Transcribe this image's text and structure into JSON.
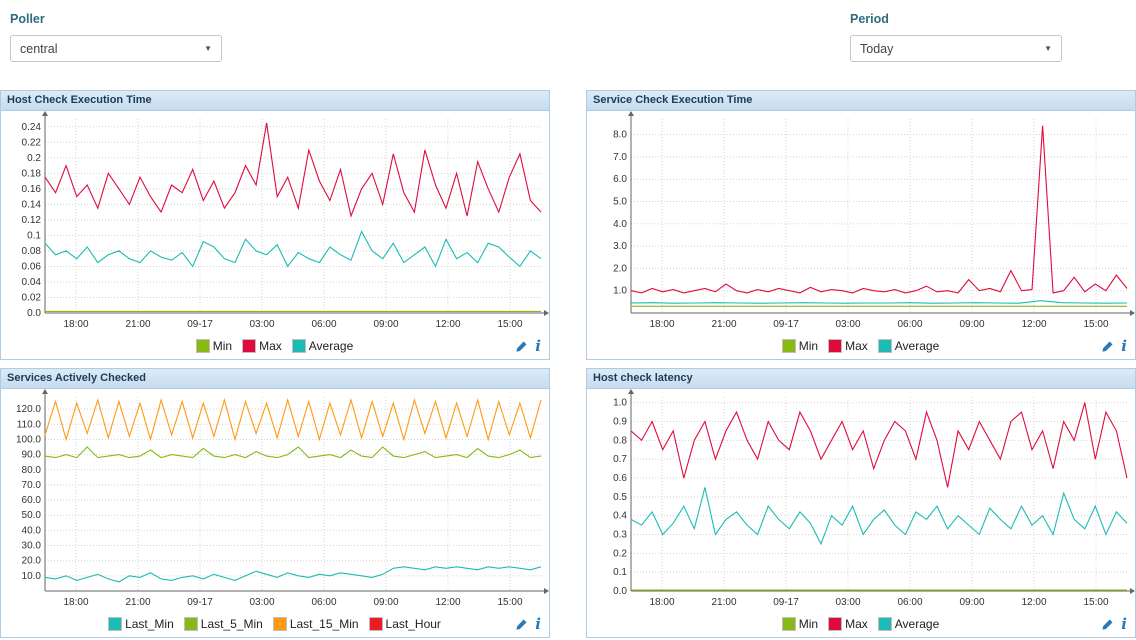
{
  "filters": {
    "poller": {
      "label": "Poller",
      "value": "central"
    },
    "period": {
      "label": "Period",
      "value": "Today"
    }
  },
  "icons": {
    "dropdown_caret": "▼",
    "info": "i"
  },
  "colors": {
    "min": "#88b917",
    "max": "#e00b3d",
    "average": "#1cbcb4",
    "orange": "#ff9913",
    "red": "#ed1b23",
    "accent_blue": "#2a7ab9"
  },
  "chart_data": [
    {
      "type": "line",
      "title": "Host Check Execution Time",
      "x_domain": [
        0,
        24
      ],
      "x_tick_values": [
        1.5,
        4.5,
        7.5,
        10.5,
        13.5,
        16.5,
        19.5,
        22.5
      ],
      "x_tick_labels": [
        "18:00",
        "21:00",
        "09-17",
        "03:00",
        "06:00",
        "09:00",
        "12:00",
        "15:00"
      ],
      "ylim": [
        0,
        0.25
      ],
      "y_tick_values": [
        0,
        0.02,
        0.04,
        0.06,
        0.08,
        0.1,
        0.12,
        0.14,
        0.16,
        0.18,
        0.2,
        0.22,
        0.24
      ],
      "y_tick_labels": [
        "0.0",
        "0.02",
        "0.04",
        "0.06",
        "0.08",
        "0.1",
        "0.12",
        "0.14",
        "0.16",
        "0.18",
        "0.2",
        "0.22",
        "0.24"
      ],
      "grid": true,
      "legend_position": "bottom",
      "series": [
        {
          "name": "Min",
          "color": "#88b917",
          "values": [
            0.002,
            0.002
          ]
        },
        {
          "name": "Max",
          "color": "#e00b3d",
          "values": [
            0.175,
            0.155,
            0.19,
            0.15,
            0.165,
            0.135,
            0.18,
            0.16,
            0.14,
            0.175,
            0.15,
            0.13,
            0.165,
            0.155,
            0.185,
            0.145,
            0.17,
            0.135,
            0.155,
            0.19,
            0.165,
            0.245,
            0.15,
            0.175,
            0.135,
            0.21,
            0.17,
            0.145,
            0.185,
            0.125,
            0.16,
            0.18,
            0.14,
            0.205,
            0.155,
            0.13,
            0.21,
            0.165,
            0.135,
            0.18,
            0.125,
            0.195,
            0.16,
            0.13,
            0.175,
            0.205,
            0.145,
            0.13
          ]
        },
        {
          "name": "Average",
          "color": "#1cbcb4",
          "values": [
            0.09,
            0.075,
            0.08,
            0.07,
            0.085,
            0.065,
            0.075,
            0.08,
            0.07,
            0.065,
            0.08,
            0.072,
            0.068,
            0.078,
            0.06,
            0.092,
            0.085,
            0.07,
            0.065,
            0.095,
            0.08,
            0.075,
            0.088,
            0.06,
            0.078,
            0.07,
            0.065,
            0.085,
            0.075,
            0.068,
            0.105,
            0.08,
            0.07,
            0.09,
            0.065,
            0.075,
            0.085,
            0.06,
            0.095,
            0.07,
            0.078,
            0.065,
            0.09,
            0.085,
            0.072,
            0.06,
            0.08,
            0.07
          ]
        }
      ]
    },
    {
      "type": "line",
      "title": "Service Check Execution Time",
      "x_domain": [
        0,
        24
      ],
      "x_tick_values": [
        1.5,
        4.5,
        7.5,
        10.5,
        13.5,
        16.5,
        19.5,
        22.5
      ],
      "x_tick_labels": [
        "18:00",
        "21:00",
        "09-17",
        "03:00",
        "06:00",
        "09:00",
        "12:00",
        "15:00"
      ],
      "ylim": [
        0,
        8.7
      ],
      "y_tick_values": [
        1,
        2,
        3,
        4,
        5,
        6,
        7,
        8
      ],
      "y_tick_labels": [
        "1.0",
        "2.0",
        "3.0",
        "4.0",
        "5.0",
        "6.0",
        "7.0",
        "8.0"
      ],
      "grid": true,
      "legend_position": "bottom",
      "series": [
        {
          "name": "Min",
          "color": "#88b917",
          "values": [
            0.3,
            0.3
          ]
        },
        {
          "name": "Max",
          "color": "#e00b3d",
          "values": [
            1.0,
            0.9,
            1.1,
            0.95,
            1.05,
            0.9,
            1.0,
            1.1,
            0.95,
            1.3,
            1.0,
            0.9,
            1.05,
            0.95,
            1.1,
            1.0,
            0.9,
            1.15,
            0.95,
            1.05,
            1.0,
            0.9,
            1.1,
            1.0,
            0.95,
            1.05,
            0.9,
            1.0,
            1.2,
            0.95,
            1.0,
            0.9,
            1.5,
            1.0,
            1.1,
            0.95,
            1.9,
            1.0,
            1.05,
            8.4,
            0.9,
            1.0,
            1.6,
            0.95,
            1.3,
            1.0,
            1.7,
            1.1
          ]
        },
        {
          "name": "Average",
          "color": "#1cbcb4",
          "values": [
            0.45,
            0.46,
            0.44,
            0.45,
            0.46,
            0.45,
            0.44,
            0.45,
            0.46,
            0.45,
            0.44,
            0.45,
            0.45,
            0.46,
            0.44,
            0.45,
            0.46,
            0.45,
            0.44,
            0.55,
            0.46,
            0.45,
            0.44,
            0.45
          ]
        }
      ]
    },
    {
      "type": "line",
      "title": "Services Actively Checked",
      "x_domain": [
        0,
        24
      ],
      "x_tick_values": [
        1.5,
        4.5,
        7.5,
        10.5,
        13.5,
        16.5,
        19.5,
        22.5
      ],
      "x_tick_labels": [
        "18:00",
        "21:00",
        "09-17",
        "03:00",
        "06:00",
        "09:00",
        "12:00",
        "15:00"
      ],
      "ylim": [
        0,
        128
      ],
      "y_tick_values": [
        10,
        20,
        30,
        40,
        50,
        60,
        70,
        80,
        90,
        100,
        110,
        120
      ],
      "y_tick_labels": [
        "10.0",
        "20.0",
        "30.0",
        "40.0",
        "50.0",
        "60.0",
        "70.0",
        "80.0",
        "90.0",
        "100.0",
        "110.0",
        "120.0"
      ],
      "grid": true,
      "legend_position": "bottom",
      "series": [
        {
          "name": "Last_Min",
          "color": "#1cbcb4",
          "values": [
            9,
            8,
            10,
            7,
            9,
            11,
            8,
            6,
            10,
            9,
            12,
            8,
            7,
            9,
            10,
            8,
            11,
            9,
            7,
            10,
            13,
            11,
            9,
            12,
            10,
            9,
            11,
            10,
            12,
            11,
            10,
            9,
            11,
            15,
            16,
            15,
            14,
            16,
            15,
            16,
            15,
            14,
            16,
            15,
            16,
            15,
            14,
            16
          ]
        },
        {
          "name": "Last_5_Min",
          "color": "#88b917",
          "values": [
            89,
            88,
            90,
            88,
            95,
            88,
            89,
            90,
            88,
            89,
            93,
            88,
            90,
            89,
            88,
            94,
            89,
            88,
            90,
            88,
            92,
            89,
            88,
            90,
            95,
            88,
            89,
            90,
            88,
            93,
            89,
            88,
            95,
            89,
            88,
            90,
            92,
            88,
            89,
            90,
            88,
            94,
            89,
            88,
            90,
            93,
            88,
            89
          ]
        },
        {
          "name": "Last_15_Min",
          "color": "#ff9913",
          "values": [
            103,
            125,
            100,
            124,
            104,
            126,
            101,
            125,
            102,
            124,
            100,
            126,
            103,
            125,
            101,
            124,
            102,
            126,
            100,
            125,
            104,
            124,
            101,
            126,
            102,
            125,
            100,
            124,
            103,
            126,
            101,
            125,
            102,
            124,
            100,
            126,
            104,
            125,
            101,
            124,
            102,
            126,
            100,
            125,
            103,
            124,
            101,
            126
          ]
        },
        {
          "name": "Last_Hour",
          "color": "#ed1b23",
          "values": []
        }
      ]
    },
    {
      "type": "line",
      "title": "Host check latency",
      "x_domain": [
        0,
        24
      ],
      "x_tick_values": [
        1.5,
        4.5,
        7.5,
        10.5,
        13.5,
        16.5,
        19.5,
        22.5
      ],
      "x_tick_labels": [
        "18:00",
        "21:00",
        "09-17",
        "03:00",
        "06:00",
        "09:00",
        "12:00",
        "15:00"
      ],
      "ylim": [
        0,
        1.03
      ],
      "y_tick_values": [
        0,
        0.1,
        0.2,
        0.3,
        0.4,
        0.5,
        0.6,
        0.7,
        0.8,
        0.9,
        1.0
      ],
      "y_tick_labels": [
        "0.0",
        "0.1",
        "0.2",
        "0.3",
        "0.4",
        "0.5",
        "0.6",
        "0.7",
        "0.8",
        "0.9",
        "1.0"
      ],
      "grid": true,
      "legend_position": "bottom",
      "series": [
        {
          "name": "Min",
          "color": "#88b917",
          "values": [
            0.005,
            0.005
          ]
        },
        {
          "name": "Max",
          "color": "#e00b3d",
          "values": [
            0.85,
            0.8,
            0.9,
            0.75,
            0.85,
            0.6,
            0.8,
            0.9,
            0.7,
            0.85,
            0.95,
            0.8,
            0.7,
            0.9,
            0.8,
            0.75,
            0.95,
            0.85,
            0.7,
            0.8,
            0.9,
            0.75,
            0.85,
            0.65,
            0.8,
            0.9,
            0.85,
            0.7,
            0.95,
            0.8,
            0.55,
            0.85,
            0.75,
            0.9,
            0.8,
            0.7,
            0.9,
            0.95,
            0.75,
            0.85,
            0.65,
            0.9,
            0.8,
            1.0,
            0.7,
            0.95,
            0.85,
            0.6
          ]
        },
        {
          "name": "Average",
          "color": "#1cbcb4",
          "values": [
            0.38,
            0.35,
            0.42,
            0.3,
            0.36,
            0.45,
            0.33,
            0.55,
            0.3,
            0.38,
            0.42,
            0.35,
            0.3,
            0.45,
            0.38,
            0.33,
            0.42,
            0.36,
            0.25,
            0.4,
            0.35,
            0.45,
            0.3,
            0.38,
            0.43,
            0.35,
            0.3,
            0.42,
            0.38,
            0.45,
            0.33,
            0.4,
            0.35,
            0.3,
            0.44,
            0.38,
            0.33,
            0.45,
            0.35,
            0.4,
            0.3,
            0.52,
            0.38,
            0.33,
            0.45,
            0.3,
            0.42,
            0.36
          ]
        }
      ]
    }
  ]
}
